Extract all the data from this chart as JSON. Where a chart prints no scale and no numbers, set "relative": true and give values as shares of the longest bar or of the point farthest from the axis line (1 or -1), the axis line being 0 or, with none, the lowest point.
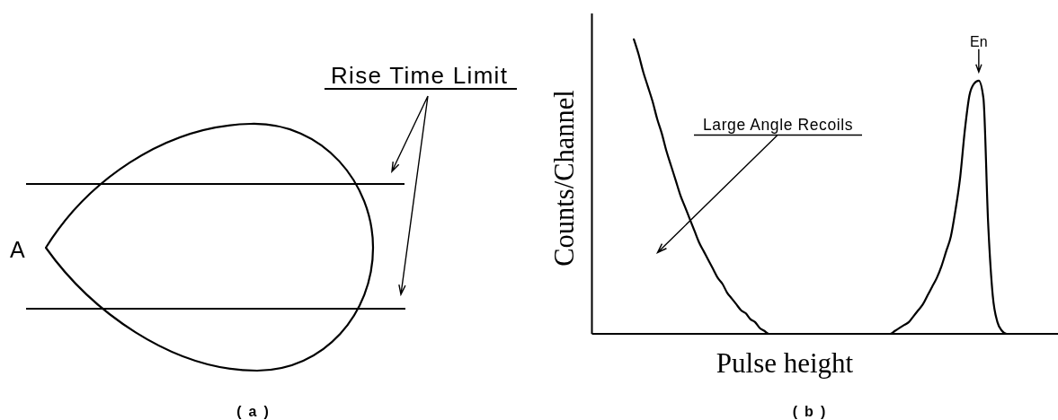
{
  "chart_data": [
    {
      "type": "other",
      "annotations": [
        "Rise Time Limit",
        "A",
        "(a)"
      ]
    },
    {
      "type": "line",
      "relative": true,
      "xlabel": "Pulse height",
      "ylabel": "Counts/Channel",
      "color": "#000000",
      "categories": [
        null,
        null,
        null,
        null,
        null,
        null,
        null,
        null,
        null,
        null,
        null,
        null,
        null,
        null,
        null,
        null,
        null,
        null,
        null,
        null,
        null,
        null,
        null,
        null,
        null,
        null,
        null,
        null,
        null,
        null,
        null,
        null,
        null,
        null,
        null,
        null,
        null,
        null,
        null,
        null,
        null,
        null,
        null,
        null,
        null,
        null,
        null,
        null,
        null,
        null,
        null,
        null,
        null,
        null,
        null,
        null,
        null,
        null,
        null,
        null,
        null,
        null,
        null,
        null,
        null,
        null,
        null,
        null,
        null,
        null,
        null,
        null,
        null,
        null,
        null,
        null,
        null,
        null,
        null,
        null,
        null,
        null,
        null,
        null,
        null,
        null,
        null,
        null,
        null,
        null,
        null,
        null,
        null,
        null,
        null,
        null,
        null,
        null,
        null,
        null,
        null
      ],
      "values": [
        null,
        null,
        null,
        null,
        null,
        null,
        null,
        null,
        null,
        1,
        0.95,
        0.89,
        0.84,
        0.79,
        0.73,
        0.68,
        0.62,
        0.57,
        0.52,
        0.47,
        0.43,
        0.39,
        0.35,
        0.31,
        0.28,
        0.25,
        0.22,
        0.19,
        0.17,
        0.14,
        0.12,
        0.1,
        0.08,
        0.07,
        0.05,
        0.04,
        0.02,
        0.01,
        0,
        0,
        0,
        0,
        0,
        0,
        0,
        0,
        0,
        0,
        0,
        0,
        0,
        0,
        0,
        0,
        0,
        0,
        0,
        0,
        0,
        0,
        0,
        0,
        0,
        0,
        0,
        0.01,
        0.02,
        0.03,
        0.04,
        0.06,
        0.08,
        0.1,
        0.13,
        0.16,
        0.19,
        0.23,
        0.28,
        0.33,
        0.42,
        0.53,
        0.69,
        0.81,
        0.85,
        0.86,
        0.8,
        0.38,
        0.13,
        0.04,
        0.01,
        0,
        0,
        0,
        0,
        0,
        0,
        0,
        0,
        0,
        0,
        0,
        0
      ],
      "annotations": [
        "Large Angle Recoils",
        {
          "text": "En",
          "y": 0.86
        },
        "(b)"
      ]
    }
  ]
}
